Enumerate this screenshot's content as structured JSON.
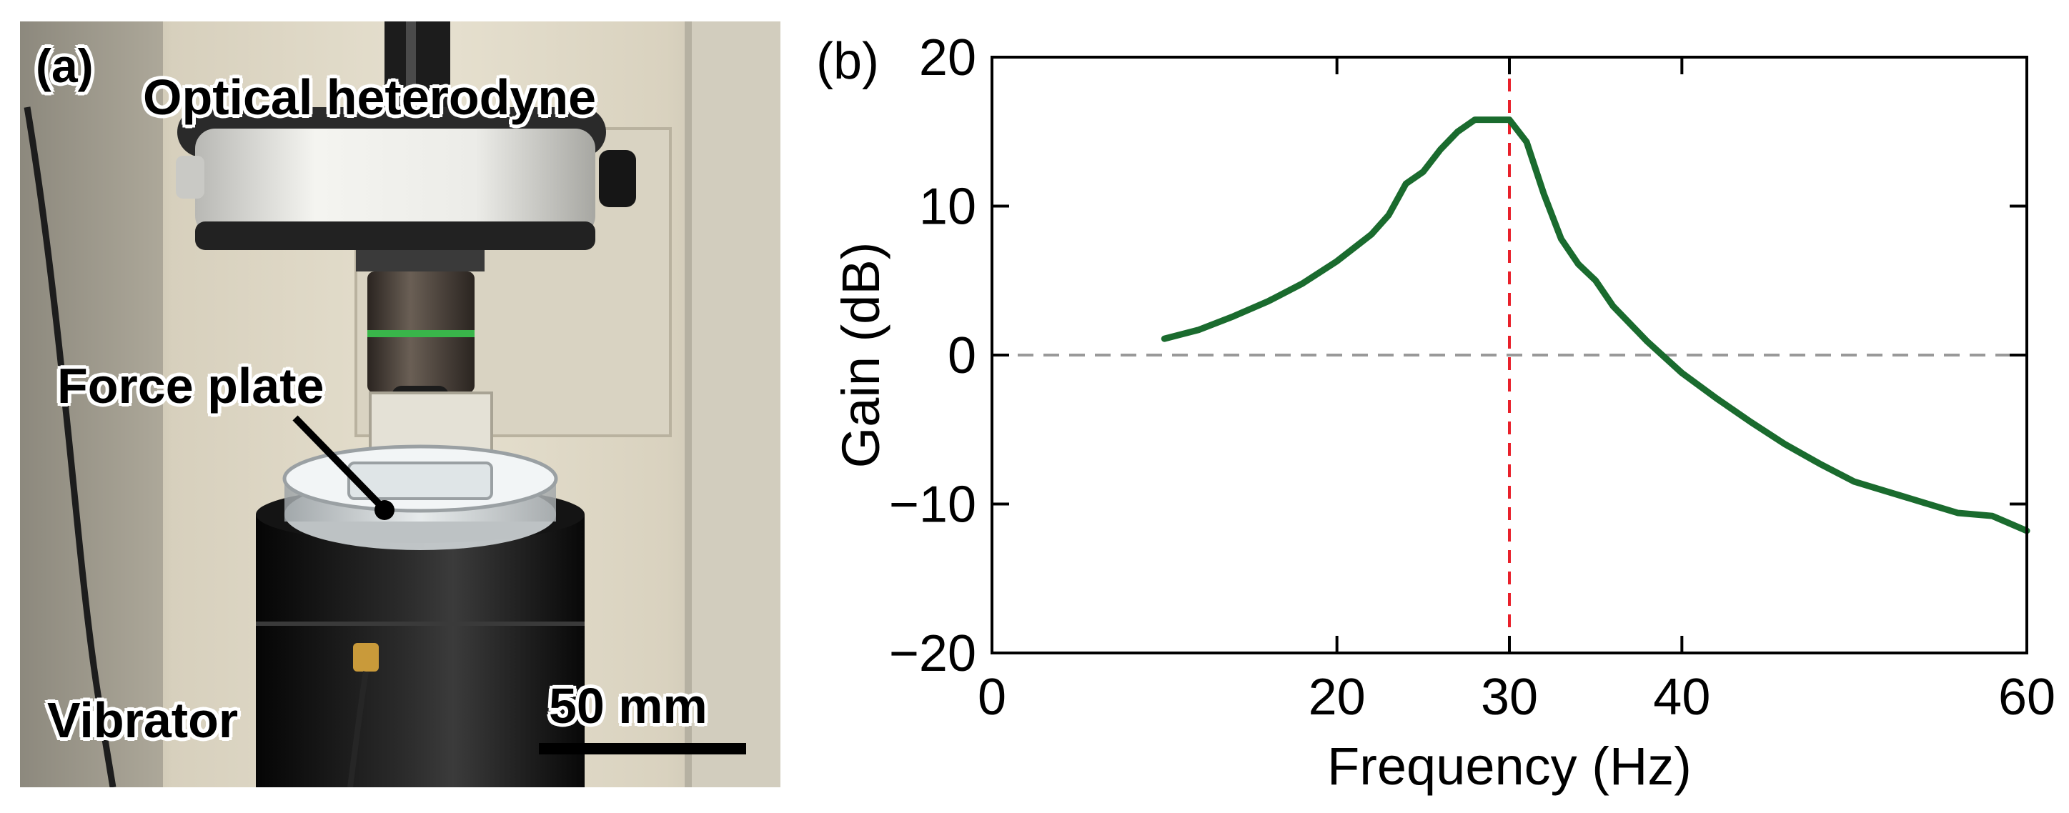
{
  "panel_a": {
    "label": "(a)",
    "annotations": {
      "heterodyne": "Optical heterodyne",
      "force_plate": "Force plate",
      "vibrator": "Vibrator",
      "scale_bar": "50 mm"
    }
  },
  "panel_b": {
    "label": "(b)"
  },
  "colors": {
    "curve": "#1a6b2e",
    "resonance_line": "#e8202a",
    "zero_line": "#999999",
    "highlight_tick": "#e8202a"
  },
  "chart_data": {
    "type": "line",
    "title": "",
    "xlabel": "Frequency (Hz)",
    "ylabel": "Gain (dB)",
    "xlim": [
      0,
      60
    ],
    "ylim": [
      -20,
      20
    ],
    "xticks": [
      0,
      20,
      30,
      40,
      60
    ],
    "xtick_labels": [
      "0",
      "20",
      "30",
      "40",
      "60"
    ],
    "highlight_xtick": "30",
    "yticks": [
      -20,
      -10,
      0,
      10,
      20
    ],
    "ytick_labels": [
      "−20",
      "−10",
      "0",
      "10",
      "20"
    ],
    "grid": false,
    "reference_lines": [
      {
        "axis": "y",
        "value": 0,
        "style": "dashed"
      },
      {
        "axis": "x",
        "value": 30,
        "style": "dashed"
      }
    ],
    "series": [
      {
        "x": [
          10,
          12,
          14,
          16,
          18,
          20,
          22,
          23,
          24,
          25,
          26,
          27,
          28,
          29,
          30,
          31,
          32,
          33,
          34,
          35,
          36,
          38,
          40,
          42,
          44,
          46,
          48,
          50,
          52,
          54,
          56,
          58,
          60
        ],
        "y": [
          1.1,
          1.7,
          2.6,
          3.6,
          4.8,
          6.3,
          8.1,
          9.4,
          11.5,
          12.3,
          13.8,
          15.0,
          15.8,
          15.8,
          15.8,
          14.3,
          10.8,
          7.8,
          6.1,
          5.0,
          3.3,
          0.9,
          -1.2,
          -2.9,
          -4.5,
          -6.0,
          -7.3,
          -8.5,
          -9.2,
          -9.9,
          -10.6,
          -10.8,
          -11.8
        ]
      }
    ]
  }
}
